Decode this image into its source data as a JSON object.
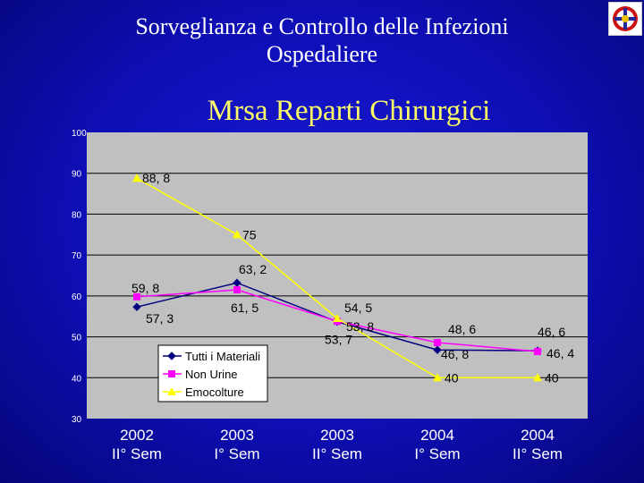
{
  "slide": {
    "title_line1": "Sorveglianza e Controllo delle Infezioni",
    "title_line2": "Ospedaliere"
  },
  "logo": {
    "icon": "hospital-emblem-icon"
  },
  "chart_data": {
    "type": "line",
    "title": "Mrsa Reparti Chirurgici",
    "categories": [
      "2002 II° Sem",
      "2003 I° Sem",
      "2003 II° Sem",
      "2004 I° Sem",
      "2004 II° Sem"
    ],
    "category_lines": [
      [
        "2002",
        "II° Sem"
      ],
      [
        "2003",
        "I° Sem"
      ],
      [
        "2003",
        "II° Sem"
      ],
      [
        "2004",
        "I° Sem"
      ],
      [
        "2004",
        "II° Sem"
      ]
    ],
    "ylim": [
      30,
      100
    ],
    "yticks": [
      30,
      40,
      50,
      60,
      70,
      80,
      90,
      100
    ],
    "grid": true,
    "legend_position": "lower-left",
    "series": [
      {
        "name": "Tutti i Materiali",
        "values": [
          57.3,
          63.2,
          53.7,
          46.8,
          46.6
        ],
        "labels": [
          "57, 3",
          "63, 2",
          "53, 7",
          "46, 8",
          "46, 6"
        ],
        "color": "#000080",
        "marker": "diamond"
      },
      {
        "name": "Non Urine",
        "values": [
          59.8,
          61.5,
          53.8,
          48.6,
          46.4
        ],
        "labels": [
          "59, 8",
          "61, 5",
          "53, 8",
          "48, 6",
          "46, 4"
        ],
        "color": "#ff00ff",
        "marker": "square"
      },
      {
        "name": "Emocolture",
        "values": [
          88.8,
          75,
          54.5,
          40,
          40
        ],
        "labels": [
          "88, 8",
          "75",
          "54, 5",
          "40",
          "40"
        ],
        "color": "#ffff00",
        "marker": "triangle"
      }
    ],
    "colors": {
      "plot_background": "#c0c0c0",
      "axis_text": "#ffffff",
      "category_text": "#ffffff",
      "gridline": "#000000",
      "legend_background": "#ffffff"
    }
  }
}
